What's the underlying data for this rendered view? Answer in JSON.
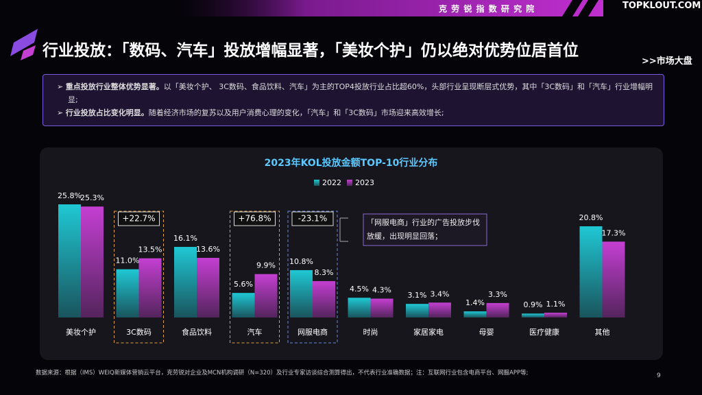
{
  "header": {
    "institute": "克 劳 锐 指 数 研 究 院",
    "logo": "TOPKLOUT.COM"
  },
  "title": "行业投放：「数码、汽车」投放增幅显著，「美妆个护」仍以绝对优势位居首位",
  "link": ">>市场大盘",
  "bullets": [
    {
      "bold": "重点投放行业整体优势显著。",
      "text": "以「美妆个护、 3C数码、食品饮料、汽车」为主的TOP4投放行业占比超60%，头部行业呈现断层式优势，其中「3C数码」和「汽车」行业增幅明显;"
    },
    {
      "bold": "行业投放占比变化明显。",
      "text": "随着经济市场的复苏以及用户消费心理的变化，「汽车」和「3C数码」市场迎来高效增长;"
    }
  ],
  "chart_data": {
    "type": "bar",
    "title": "2023年KOL投放金额TOP-10行业分布",
    "categories": [
      "美妆个护",
      "3C数码",
      "食品饮料",
      "汽车",
      "网服电商",
      "时尚",
      "家居家电",
      "母婴",
      "医疗健康",
      "其他"
    ],
    "series": [
      {
        "name": "2022",
        "color": "#1fc8d4",
        "values": [
          25.8,
          11.0,
          16.1,
          5.6,
          10.8,
          4.5,
          3.1,
          1.4,
          0.9,
          20.8
        ],
        "value_labels": [
          "25.8%",
          "11.0%",
          "16.1%",
          "5.6%",
          "10.8%",
          "4.5%",
          "3.1%",
          "1.4%",
          "0.9%",
          "20.8%"
        ]
      },
      {
        "name": "2023",
        "color": "#c43fd2",
        "values": [
          25.3,
          13.5,
          13.6,
          9.9,
          8.3,
          4.3,
          3.4,
          3.3,
          1.1,
          17.3
        ],
        "value_labels": [
          "25.3%",
          "13.5%",
          "13.6%",
          "9.9%",
          "8.3%",
          "4.3%",
          "3.4%",
          "3.3%",
          "1.1%",
          "17.3%"
        ]
      }
    ],
    "annotations": [
      {
        "category": "3C数码",
        "label": "+22.7%",
        "color": "#e0a040"
      },
      {
        "category": "汽车",
        "label": "+76.8%",
        "color": "#e0a040"
      },
      {
        "category": "网服电商",
        "label": "-23.1%",
        "color": "#6a8ae0"
      }
    ],
    "callout": "「网服电商」行业的广告投放步伐放缓，出现明显回落；"
  },
  "source": "数据来源：根据（IMS）WEIQ新媒体营销云平台，克劳锐对企业及MCN机构调研（N=320）及行业专家访谈综合测算得出，不代表行业准确数据；注：互联网行业包含电商平台、网服APP等;",
  "page": "9"
}
